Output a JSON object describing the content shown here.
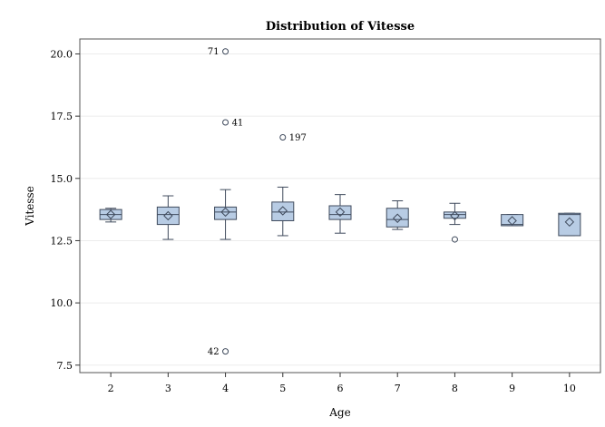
{
  "chart_data": {
    "type": "box",
    "title": "Distribution of Vitesse",
    "xlabel": "Age",
    "ylabel": "Vitesse",
    "ylim": [
      7.2,
      20.6
    ],
    "yticks": [
      7.5,
      10.0,
      12.5,
      15.0,
      17.5,
      20.0
    ],
    "ytick_labels": [
      "7.5",
      "10.0",
      "12.5",
      "15.0",
      "17.5",
      "20.0"
    ],
    "categories": [
      "2",
      "3",
      "4",
      "5",
      "6",
      "7",
      "8",
      "9",
      "10"
    ],
    "box_color": "#b8cce4",
    "line_color": "#3f4a5c",
    "grid": true,
    "boxes": [
      {
        "category": "2",
        "whisker_low": 13.25,
        "q1": 13.35,
        "median": 13.55,
        "q3": 13.75,
        "whisker_high": 13.8,
        "mean": 13.55,
        "outliers": []
      },
      {
        "category": "3",
        "whisker_low": 12.55,
        "q1": 13.15,
        "median": 13.55,
        "q3": 13.85,
        "whisker_high": 14.3,
        "mean": 13.5,
        "outliers": []
      },
      {
        "category": "4",
        "whisker_low": 12.55,
        "q1": 13.35,
        "median": 13.65,
        "q3": 13.85,
        "whisker_high": 14.55,
        "mean": 13.65,
        "outliers": [
          {
            "value": 20.1,
            "label": "71",
            "label_side": "left"
          },
          {
            "value": 17.25,
            "label": "41",
            "label_side": "right"
          },
          {
            "value": 8.05,
            "label": "42",
            "label_side": "left"
          }
        ]
      },
      {
        "category": "5",
        "whisker_low": 12.7,
        "q1": 13.3,
        "median": 13.65,
        "q3": 14.05,
        "whisker_high": 14.65,
        "mean": 13.7,
        "outliers": [
          {
            "value": 16.65,
            "label": "197",
            "label_side": "right"
          }
        ]
      },
      {
        "category": "6",
        "whisker_low": 12.8,
        "q1": 13.35,
        "median": 13.55,
        "q3": 13.9,
        "whisker_high": 14.35,
        "mean": 13.65,
        "outliers": []
      },
      {
        "category": "7",
        "whisker_low": 12.95,
        "q1": 13.05,
        "median": 13.35,
        "q3": 13.8,
        "whisker_high": 14.1,
        "mean": 13.4,
        "outliers": []
      },
      {
        "category": "8",
        "whisker_low": 13.15,
        "q1": 13.4,
        "median": 13.55,
        "q3": 13.65,
        "whisker_high": 14.0,
        "mean": 13.5,
        "outliers": [
          {
            "value": 12.55,
            "label": "",
            "label_side": "right"
          }
        ]
      },
      {
        "category": "9",
        "whisker_low": 13.1,
        "q1": 13.1,
        "median": 13.15,
        "q3": 13.55,
        "whisker_high": 13.55,
        "mean": 13.3,
        "outliers": []
      },
      {
        "category": "10",
        "whisker_low": 12.7,
        "q1": 12.7,
        "median": 13.55,
        "q3": 13.6,
        "whisker_high": 13.6,
        "mean": 13.25,
        "outliers": []
      }
    ]
  }
}
